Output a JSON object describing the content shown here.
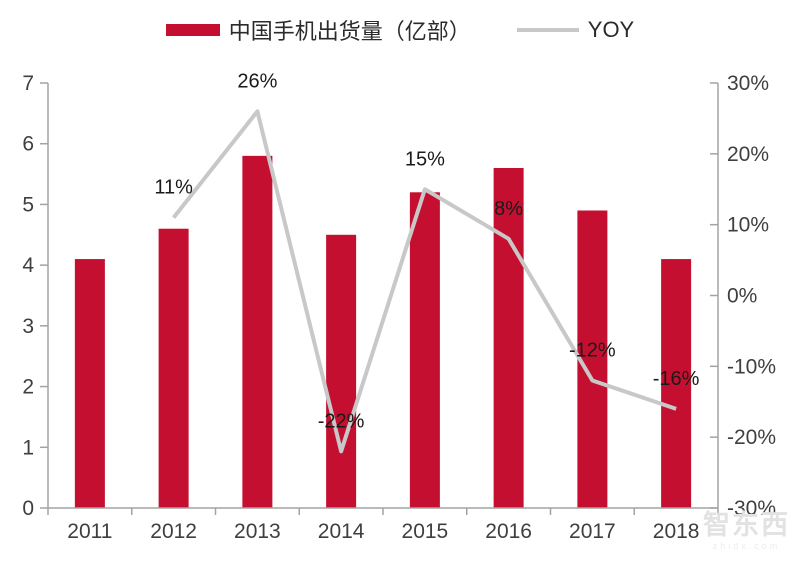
{
  "watermark": {
    "brand": "智东西",
    "domain": "zhidx.com"
  },
  "colors": {
    "bar": "#C50F30",
    "line": "#C8C8C8",
    "axis": "#A3A3A3",
    "axis_text": "#3F3F3F",
    "label_text": "#1A1A1A"
  },
  "chart_data": {
    "type": "bar",
    "title": "",
    "categories": [
      "2011",
      "2012",
      "2013",
      "2014",
      "2015",
      "2016",
      "2017",
      "2018"
    ],
    "series": [
      {
        "name": "中国手机出货量（亿部）",
        "type": "bar",
        "axis": "left",
        "values": [
          4.1,
          4.6,
          5.8,
          4.5,
          5.2,
          5.6,
          4.9,
          4.1
        ]
      },
      {
        "name": "YOY",
        "type": "line",
        "axis": "right",
        "values": [
          null,
          11,
          26,
          -22,
          15,
          8,
          -12,
          -16
        ],
        "labels": [
          null,
          "11%",
          "26%",
          "-22%",
          "15%",
          "8%",
          "-12%",
          "-16%"
        ]
      }
    ],
    "left_axis": {
      "min": 0,
      "max": 7,
      "ticks": [
        0,
        1,
        2,
        3,
        4,
        5,
        6,
        7
      ]
    },
    "right_axis": {
      "min": -30,
      "max": 30,
      "ticks": [
        30,
        20,
        10,
        0,
        -10,
        -20,
        -30
      ],
      "tick_labels": [
        "30%",
        "20%",
        "10%",
        "0%",
        "-10%",
        "-20%",
        "-30%"
      ]
    },
    "grid": false,
    "legend_position": "top-center"
  }
}
